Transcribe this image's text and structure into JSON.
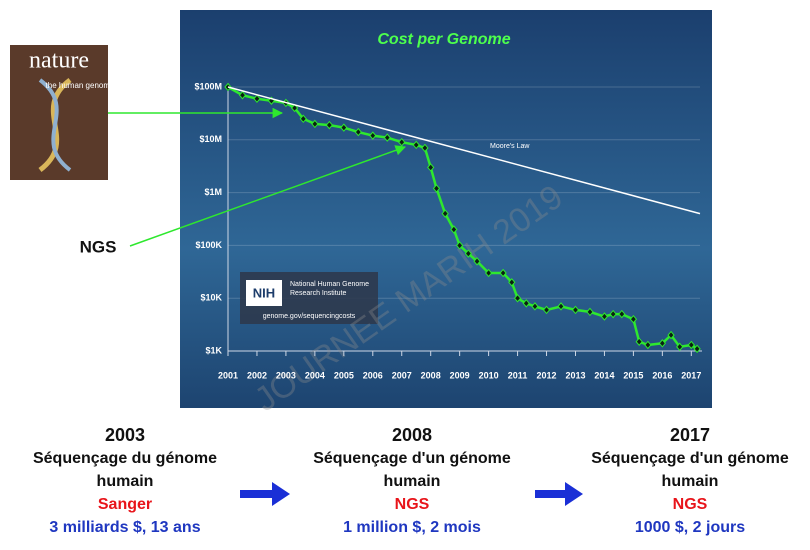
{
  "chart_data": {
    "type": "line",
    "title": "Cost per Genome",
    "log_scale": true,
    "grid": true,
    "xlim": [
      2001,
      2017.3
    ],
    "ylim": [
      1000,
      100000000
    ],
    "xticks": [
      2001,
      2002,
      2003,
      2004,
      2005,
      2006,
      2007,
      2008,
      2009,
      2010,
      2011,
      2012,
      2013,
      2014,
      2015,
      2016,
      2017
    ],
    "yticks": [
      {
        "value": 1000,
        "label": "$1K"
      },
      {
        "value": 10000,
        "label": "$10K"
      },
      {
        "value": 100000,
        "label": "$100K"
      },
      {
        "value": 1000000,
        "label": "$1M"
      },
      {
        "value": 10000000,
        "label": "$10M"
      },
      {
        "value": 100000000,
        "label": "$100M"
      }
    ],
    "series": [
      {
        "color": "#2ee82e",
        "markers": true,
        "x": [
          2001.0,
          2001.5,
          2002.0,
          2002.5,
          2003.0,
          2003.3,
          2003.6,
          2004.0,
          2004.5,
          2005.0,
          2005.5,
          2006.0,
          2006.5,
          2007.0,
          2007.5,
          2007.8,
          2008.0,
          2008.2,
          2008.5,
          2008.8,
          2009.0,
          2009.3,
          2009.6,
          2010.0,
          2010.5,
          2010.8,
          2011.0,
          2011.3,
          2011.6,
          2012.0,
          2012.5,
          2013.0,
          2013.5,
          2014.0,
          2014.3,
          2014.6,
          2015.0,
          2015.2,
          2015.5,
          2016.0,
          2016.3,
          2016.6,
          2017.0,
          2017.2
        ],
        "values": [
          100000000,
          70000000,
          60000000,
          55000000,
          50000000,
          40000000,
          25000000,
          20000000,
          19000000,
          17000000,
          14000000,
          12000000,
          11000000,
          9000000,
          8000000,
          7000000,
          3000000,
          1200000,
          400000,
          200000,
          100000,
          70000,
          50000,
          30000,
          30000,
          20000,
          10000,
          8000,
          7000,
          6000,
          7000,
          6000,
          5500,
          4500,
          5000,
          5000,
          4000,
          1500,
          1300,
          1400,
          2000,
          1200,
          1300,
          1100
        ]
      },
      {
        "name": "Moore's Law",
        "color": "#ffffff",
        "markers": false,
        "x": [
          2001,
          2017.3
        ],
        "values": [
          100000000,
          400000
        ]
      }
    ]
  },
  "cover": {
    "title": "nature",
    "subtitle": "the human genome"
  },
  "ngs_label": "NGS",
  "nih": {
    "logo": "NIH",
    "name": "National Human Genome Research Institute",
    "url": "genome.gov/sequencingcosts"
  },
  "watermark": "JOURNEE MARIH 2019",
  "milestones": [
    {
      "year": "2003",
      "description": "Séquençage du génome humain",
      "method": "Sanger",
      "cost": "3 milliards $, 13 ans"
    },
    {
      "year": "2008",
      "description": "Séquençage d'un génome humain",
      "method": "NGS",
      "cost": "1 million $, 2 mois"
    },
    {
      "year": "2017",
      "description": "Séquençage d'un génome humain",
      "method": "NGS",
      "cost": "1000 $, 2 jours"
    }
  ]
}
